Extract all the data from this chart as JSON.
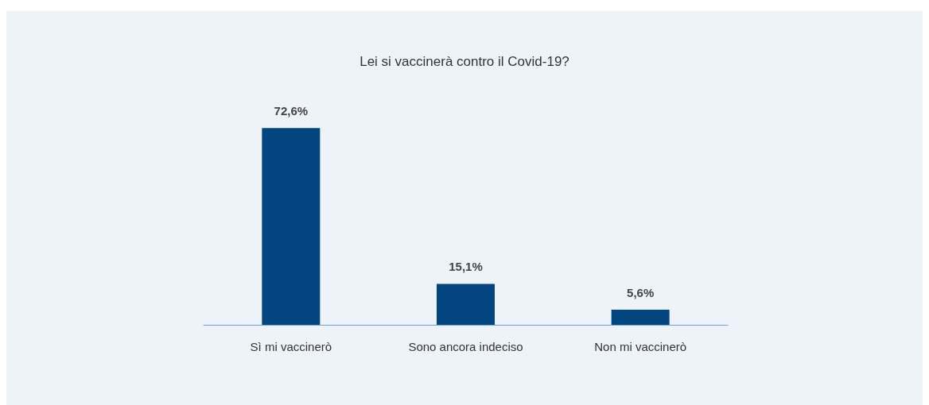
{
  "chart_data": {
    "type": "bar",
    "title": "Lei si vaccinerà contro il Covid-19?",
    "categories": [
      "Sì mi vaccinerò",
      "Sono ancora indeciso",
      "Non mi vaccinerò"
    ],
    "values": [
      72.6,
      15.1,
      5.6
    ],
    "value_labels": [
      "72,6%",
      "15,1%",
      "5,6%"
    ],
    "color": "#03467f"
  }
}
